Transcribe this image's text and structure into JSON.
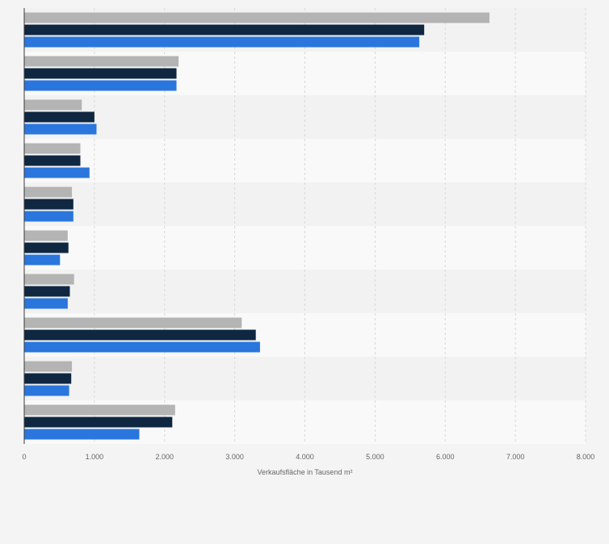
{
  "chart_data": {
    "type": "bar",
    "orientation": "horizontal",
    "categories": [
      "",
      "",
      "",
      "",
      "",
      "",
      "",
      "",
      "",
      ""
    ],
    "series": [
      {
        "color": "#b4b4b4",
        "values": [
          6630,
          2200,
          820,
          800,
          680,
          620,
          710,
          3100,
          680,
          2150
        ]
      },
      {
        "color": "#0f2741",
        "values": [
          5700,
          2170,
          1000,
          800,
          700,
          630,
          650,
          3300,
          670,
          2110
        ]
      },
      {
        "color": "#2a76dd",
        "values": [
          5630,
          2170,
          1030,
          930,
          700,
          510,
          620,
          3360,
          640,
          1640
        ]
      }
    ],
    "xlabel": "Verkaufsfläche in Tausend m²",
    "xlim": [
      0,
      8000
    ],
    "x_ticks": [
      0,
      1000,
      2000,
      3000,
      4000,
      5000,
      6000,
      7000,
      8000
    ],
    "x_tick_labels": [
      "0",
      "1.000",
      "2.000",
      "3.000",
      "4.000",
      "5.000",
      "6.000",
      "7.000",
      "8.000"
    ],
    "grid": true,
    "band_colors": [
      "#f2f2f2",
      "#f9f9f9"
    ]
  }
}
